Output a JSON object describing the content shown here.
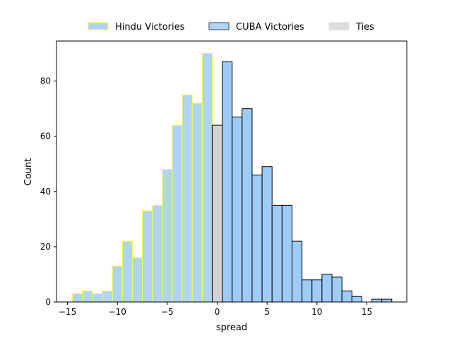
{
  "chart_data": {
    "type": "bar",
    "title": "",
    "xlabel": "spread",
    "ylabel": "Count",
    "xlim": [
      -16.1,
      19.0
    ],
    "ylim": [
      0,
      94.5
    ],
    "xticks": [
      -15,
      -10,
      -5,
      0,
      5,
      10,
      15
    ],
    "yticks": [
      0,
      20,
      40,
      60,
      80
    ],
    "bin_width": 1.0,
    "grid": false,
    "legend_position": "top-center, above plot",
    "series": [
      {
        "name": "Hindu Victories",
        "fill": "#b0d4f2",
        "edge": "#ffff33",
        "bins": [
          {
            "x0": -14.5,
            "x1": -13.5,
            "count": 3
          },
          {
            "x0": -13.5,
            "x1": -12.5,
            "count": 4
          },
          {
            "x0": -12.5,
            "x1": -11.5,
            "count": 3
          },
          {
            "x0": -11.5,
            "x1": -10.5,
            "count": 4
          },
          {
            "x0": -10.5,
            "x1": -9.5,
            "count": 13
          },
          {
            "x0": -9.5,
            "x1": -8.5,
            "count": 22
          },
          {
            "x0": -8.5,
            "x1": -7.5,
            "count": 16
          },
          {
            "x0": -7.5,
            "x1": -6.5,
            "count": 33
          },
          {
            "x0": -6.5,
            "x1": -5.5,
            "count": 35
          },
          {
            "x0": -5.5,
            "x1": -4.5,
            "count": 48
          },
          {
            "x0": -4.5,
            "x1": -3.5,
            "count": 64
          },
          {
            "x0": -3.5,
            "x1": -2.5,
            "count": 75
          },
          {
            "x0": -2.5,
            "x1": -1.5,
            "count": 72
          },
          {
            "x0": -1.5,
            "x1": -0.5,
            "count": 90
          }
        ]
      },
      {
        "name": "CUBA Victories",
        "fill": "#9fcbf7",
        "edge": "#000000",
        "bins": [
          {
            "x0": 0.5,
            "x1": 1.5,
            "count": 87
          },
          {
            "x0": 1.5,
            "x1": 2.5,
            "count": 67
          },
          {
            "x0": 2.5,
            "x1": 3.5,
            "count": 70
          },
          {
            "x0": 3.5,
            "x1": 4.5,
            "count": 46
          },
          {
            "x0": 4.5,
            "x1": 5.5,
            "count": 49
          },
          {
            "x0": 5.5,
            "x1": 6.5,
            "count": 35
          },
          {
            "x0": 6.5,
            "x1": 7.5,
            "count": 35
          },
          {
            "x0": 7.5,
            "x1": 8.5,
            "count": 22
          },
          {
            "x0": 8.5,
            "x1": 9.5,
            "count": 8
          },
          {
            "x0": 9.5,
            "x1": 10.5,
            "count": 8
          },
          {
            "x0": 10.5,
            "x1": 11.5,
            "count": 10
          },
          {
            "x0": 11.5,
            "x1": 12.5,
            "count": 9
          },
          {
            "x0": 12.5,
            "x1": 13.5,
            "count": 4
          },
          {
            "x0": 13.5,
            "x1": 14.5,
            "count": 2
          },
          {
            "x0": 15.5,
            "x1": 16.5,
            "count": 1
          },
          {
            "x0": 16.5,
            "x1": 17.5,
            "count": 1
          }
        ]
      },
      {
        "name": "Ties",
        "fill": "#d3d3d3",
        "edge": "#000000",
        "bins": [
          {
            "x0": -0.5,
            "x1": 0.5,
            "count": 64
          }
        ]
      }
    ],
    "legend": [
      {
        "label": "Hindu Victories",
        "fill": "#b0d4f2",
        "edge": "#ffff33"
      },
      {
        "label": "CUBA Victories",
        "fill": "#b0d4f2",
        "edge": "#3b4a66"
      },
      {
        "label": "Ties",
        "fill": "#dddddd",
        "edge": "#dddddd"
      }
    ]
  }
}
